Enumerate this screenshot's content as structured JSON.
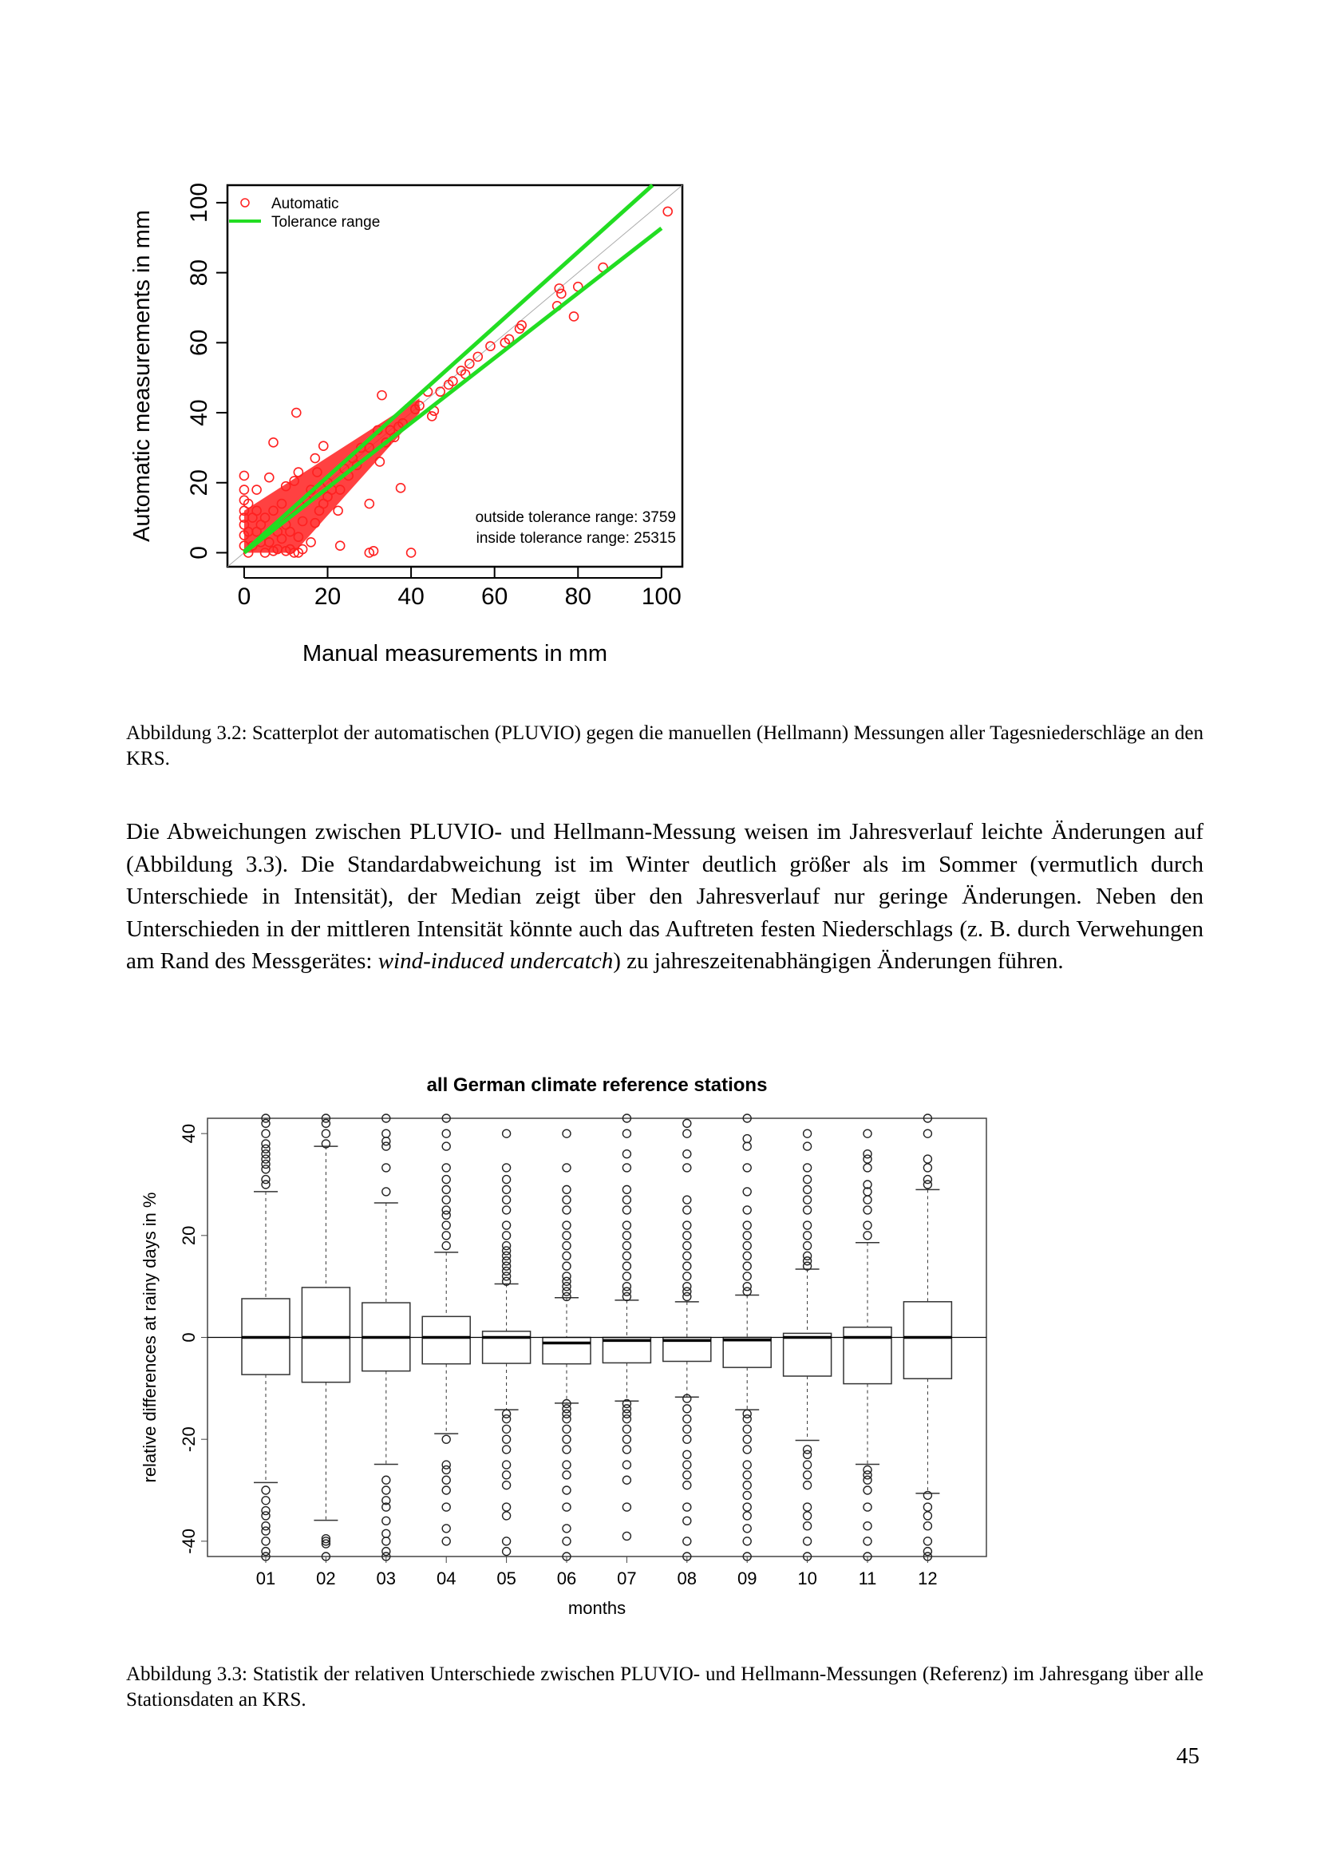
{
  "figure1": {
    "caption": "Abbildung 3.2: Scatterplot der automatischen (PLUVIO) gegen die manuellen (Hellmann) Messungen aller Tagesniederschläge an den KRS."
  },
  "paragraph": {
    "part1": "Die Abweichungen zwischen PLUVIO- und Hellmann-Messung weisen im Jahresverlauf leichte Änderungen auf (Abbildung 3.3). Die Standardabweichung ist im Winter deutlich größer als im Sommer (vermutlich durch Unterschiede in Intensität), der Median zeigt über den Jahresverlauf nur geringe Änderungen. Neben den Unterschieden in der mittleren Intensität könnte auch das Auftreten festen Niederschlags (z. B. durch Verwehungen am Rand des Messgerätes: ",
    "italic": "wind-induced undercatch",
    "part2": ") zu jahreszeitenabhängigen Änderungen führen."
  },
  "figure2": {
    "caption": "Abbildung 3.3: Statistik der relativen Unterschiede zwischen PLUVIO- und Hellmann-Messungen (Referenz) im Jahresgang über alle Stationsdaten an KRS."
  },
  "page_number": "45",
  "chart_data": [
    {
      "type": "scatter",
      "title": "",
      "xlabel": "Manual measurements in mm",
      "ylabel": "Automatic measurements in mm",
      "xlim": [
        -4,
        105
      ],
      "ylim": [
        -4,
        105
      ],
      "xticks": [
        "0",
        "20",
        "40",
        "60",
        "80",
        "100"
      ],
      "yticks": [
        "0",
        "20",
        "40",
        "60",
        "80",
        "100"
      ],
      "legend": {
        "position": "top-left",
        "entries": [
          "Automatic",
          "Tolerance range"
        ]
      },
      "colors": {
        "points": "#ff2020",
        "tolerance": "#22dd22",
        "identity": "#aaaaaa"
      },
      "annotations": [
        "outside tolerance range:  3759",
        "inside tolerance range:  25315"
      ],
      "tolerance_upper": {
        "slope": 1.07,
        "intercept": 0.3
      },
      "tolerance_lower": {
        "slope": 0.93,
        "intercept": -0.3
      },
      "dense_band_to": 42,
      "points": [
        [
          0,
          22
        ],
        [
          6,
          21.5
        ],
        [
          3,
          18
        ],
        [
          13,
          23
        ],
        [
          7,
          31.5
        ],
        [
          12.5,
          40
        ],
        [
          19,
          30.5
        ],
        [
          17,
          27
        ],
        [
          17.5,
          23
        ],
        [
          12,
          20.5
        ],
        [
          10,
          19
        ],
        [
          33,
          45
        ],
        [
          32,
          35
        ],
        [
          34,
          31.5
        ],
        [
          32.5,
          26
        ],
        [
          37.5,
          18.5
        ],
        [
          23,
          18
        ],
        [
          22.5,
          12
        ],
        [
          30,
          14
        ],
        [
          19,
          14
        ],
        [
          23,
          2
        ],
        [
          30,
          0
        ],
        [
          31,
          0.5
        ],
        [
          40,
          0
        ],
        [
          16,
          3
        ],
        [
          13,
          4.5
        ],
        [
          17,
          8.5
        ],
        [
          45,
          39
        ],
        [
          45.5,
          40.5
        ],
        [
          44,
          46
        ],
        [
          49,
          48
        ],
        [
          52,
          52
        ],
        [
          54,
          54
        ],
        [
          56,
          56
        ],
        [
          59,
          59
        ],
        [
          62.5,
          60
        ],
        [
          63.5,
          61
        ],
        [
          66,
          64
        ],
        [
          66.5,
          65
        ],
        [
          75,
          70.5
        ],
        [
          76,
          74
        ],
        [
          75.5,
          75.5
        ],
        [
          80,
          76
        ],
        [
          79,
          67.5
        ],
        [
          86,
          81.5
        ],
        [
          101.5,
          97.5
        ],
        [
          37,
          36
        ],
        [
          41,
          41
        ],
        [
          28,
          30
        ],
        [
          26,
          27
        ],
        [
          0,
          15
        ],
        [
          0,
          12
        ],
        [
          0,
          8
        ],
        [
          0,
          5
        ],
        [
          0,
          2
        ],
        [
          1,
          0
        ],
        [
          5,
          0
        ],
        [
          8,
          1
        ],
        [
          10,
          0.5
        ],
        [
          12,
          0
        ],
        [
          14,
          1
        ],
        [
          2,
          10
        ],
        [
          3,
          6
        ],
        [
          5,
          10
        ],
        [
          7,
          12
        ],
        [
          9,
          14
        ],
        [
          6,
          3
        ],
        [
          8,
          6
        ],
        [
          10,
          8
        ],
        [
          4,
          3
        ],
        [
          2,
          2
        ],
        [
          15,
          15
        ],
        [
          20,
          20
        ],
        [
          24,
          24
        ],
        [
          30,
          30
        ],
        [
          35,
          35
        ],
        [
          38,
          37
        ],
        [
          1,
          14
        ],
        [
          0,
          10
        ],
        [
          3,
          12
        ],
        [
          11,
          6
        ],
        [
          14,
          9
        ],
        [
          18,
          12
        ],
        [
          20,
          16
        ],
        [
          25,
          22
        ],
        [
          11,
          1
        ],
        [
          13,
          0
        ],
        [
          7,
          0.5
        ],
        [
          0,
          18
        ],
        [
          1,
          6
        ],
        [
          4,
          8
        ],
        [
          9,
          4
        ],
        [
          16,
          18
        ],
        [
          21,
          18
        ],
        [
          27,
          25
        ],
        [
          36,
          33
        ],
        [
          42,
          42
        ],
        [
          47,
          46
        ],
        [
          50,
          49
        ],
        [
          53,
          51
        ]
      ]
    },
    {
      "type": "boxplot",
      "title": "all German climate reference stations",
      "xlabel": "months",
      "ylabel": "relative differences at rainy days in %",
      "ylim": [
        -43,
        43
      ],
      "yticks": [
        "-40",
        "-20",
        "0",
        "20",
        "40"
      ],
      "categories": [
        "01",
        "02",
        "03",
        "04",
        "05",
        "06",
        "07",
        "08",
        "09",
        "10",
        "11",
        "12"
      ],
      "boxes": [
        {
          "q1": -7.3,
          "median": 0,
          "q3": 7.6,
          "whisker_low": -28.5,
          "whisker_high": 28.6,
          "outliers": [
            30,
            31,
            33,
            34,
            35,
            36,
            37,
            38,
            40,
            42,
            43,
            -30,
            -32,
            -34,
            -35,
            -37,
            -38,
            -40,
            -42,
            -43
          ]
        },
        {
          "q1": -8.8,
          "median": 0,
          "q3": 9.8,
          "whisker_low": -35.9,
          "whisker_high": 37.5,
          "outliers": [
            38,
            40,
            42,
            43,
            -39.5,
            -40,
            -40.5,
            -43
          ]
        },
        {
          "q1": -6.6,
          "median": 0,
          "q3": 6.8,
          "whisker_low": -24.9,
          "whisker_high": 26.4,
          "outliers": [
            28.6,
            33.3,
            37.5,
            38.5,
            40,
            43,
            -28,
            -30,
            -32,
            -33.3,
            -36,
            -38.5,
            -40,
            -42,
            -43
          ]
        },
        {
          "q1": -5.2,
          "median": 0,
          "q3": 4.1,
          "whisker_low": -18.9,
          "whisker_high": 16.7,
          "outliers": [
            18,
            20,
            22,
            24,
            25,
            27,
            29,
            31,
            33.3,
            37.5,
            40,
            43,
            -20,
            -25,
            -26,
            -28,
            -30,
            -33.3,
            -37.5,
            -40
          ]
        },
        {
          "q1": -5.1,
          "median": 0,
          "q3": 1.2,
          "whisker_low": -14.2,
          "whisker_high": 10.5,
          "outliers": [
            11,
            12,
            13,
            14,
            15,
            16,
            17,
            18,
            20,
            22,
            25,
            27,
            29,
            31,
            33.3,
            40,
            -15,
            -16,
            -18,
            -20,
            -22,
            -25,
            -27,
            -29,
            -33.3,
            -35,
            -40,
            -42
          ]
        },
        {
          "q1": -5.2,
          "median": -1.1,
          "q3": 0,
          "whisker_low": -12.9,
          "whisker_high": 7.8,
          "outliers": [
            8,
            9,
            10,
            11,
            12,
            14,
            16,
            18,
            20,
            22,
            25,
            27,
            29,
            33.3,
            40,
            -13,
            -14,
            -15,
            -16,
            -18,
            -20,
            -22,
            -25,
            -27,
            -30,
            -33.3,
            -37.5,
            -40,
            -43
          ]
        },
        {
          "q1": -5.0,
          "median": -0.6,
          "q3": 0,
          "whisker_low": -12.5,
          "whisker_high": 7.3,
          "outliers": [
            8,
            9,
            10,
            12,
            14,
            16,
            18,
            20,
            22,
            25,
            27,
            29,
            33.3,
            36,
            40,
            43,
            -13,
            -14,
            -15,
            -16,
            -18,
            -20,
            -22,
            -25,
            -28,
            -33.3,
            -39
          ]
        },
        {
          "q1": -4.7,
          "median": -0.6,
          "q3": 0,
          "whisker_low": -11.7,
          "whisker_high": 7.0,
          "outliers": [
            8,
            9,
            10,
            12,
            14,
            16,
            18,
            20,
            22,
            25,
            27,
            33.3,
            36,
            40,
            42,
            -12,
            -14,
            -16,
            -18,
            -20,
            -23,
            -25,
            -27,
            -29,
            -33.3,
            -36,
            -40,
            -43
          ]
        },
        {
          "q1": -5.9,
          "median": -0.5,
          "q3": 0,
          "whisker_low": -14.2,
          "whisker_high": 8.3,
          "outliers": [
            9,
            10,
            12,
            14,
            16,
            18,
            20,
            22,
            25,
            28.6,
            33.3,
            37.5,
            39,
            43,
            -15,
            -16,
            -18,
            -20,
            -22,
            -25,
            -27,
            -29,
            -31,
            -33.3,
            -35,
            -37.5,
            -40,
            -43
          ]
        },
        {
          "q1": -7.6,
          "median": 0,
          "q3": 0.8,
          "whisker_low": -20.2,
          "whisker_high": 13.4,
          "outliers": [
            14,
            15,
            16,
            18,
            20,
            22,
            25,
            27,
            29,
            31,
            33.3,
            37.5,
            40,
            -22,
            -23,
            -25,
            -27,
            -29,
            -33.3,
            -35,
            -37,
            -40,
            -43
          ]
        },
        {
          "q1": -9.1,
          "median": 0,
          "q3": 2.0,
          "whisker_low": -24.9,
          "whisker_high": 18.6,
          "outliers": [
            20,
            22,
            25,
            27,
            28.6,
            30,
            33.3,
            35,
            36,
            40,
            -26,
            -27,
            -28,
            -30,
            -33.3,
            -37,
            -40,
            -43
          ]
        },
        {
          "q1": -8.1,
          "median": 0,
          "q3": 7.0,
          "whisker_low": -30.6,
          "whisker_high": 29.0,
          "outliers": [
            30,
            31,
            33.3,
            35,
            40,
            43,
            -31,
            -33.3,
            -35,
            -37,
            -40,
            -42,
            -43
          ]
        }
      ]
    }
  ]
}
